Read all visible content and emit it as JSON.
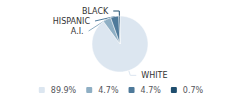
{
  "chart_data": {
    "type": "pie",
    "categories": [
      "WHITE",
      "A.I.",
      "HISPANIC",
      "BLACK"
    ],
    "values": [
      89.9,
      4.7,
      4.7,
      0.7
    ],
    "value_labels": [
      "89.9%",
      "4.7%",
      "4.7%",
      "0.7%"
    ],
    "colors": [
      "#dce6f0",
      "#8fafc4",
      "#4f7a9a",
      "#1f4e6e"
    ],
    "legend": "bottom"
  }
}
